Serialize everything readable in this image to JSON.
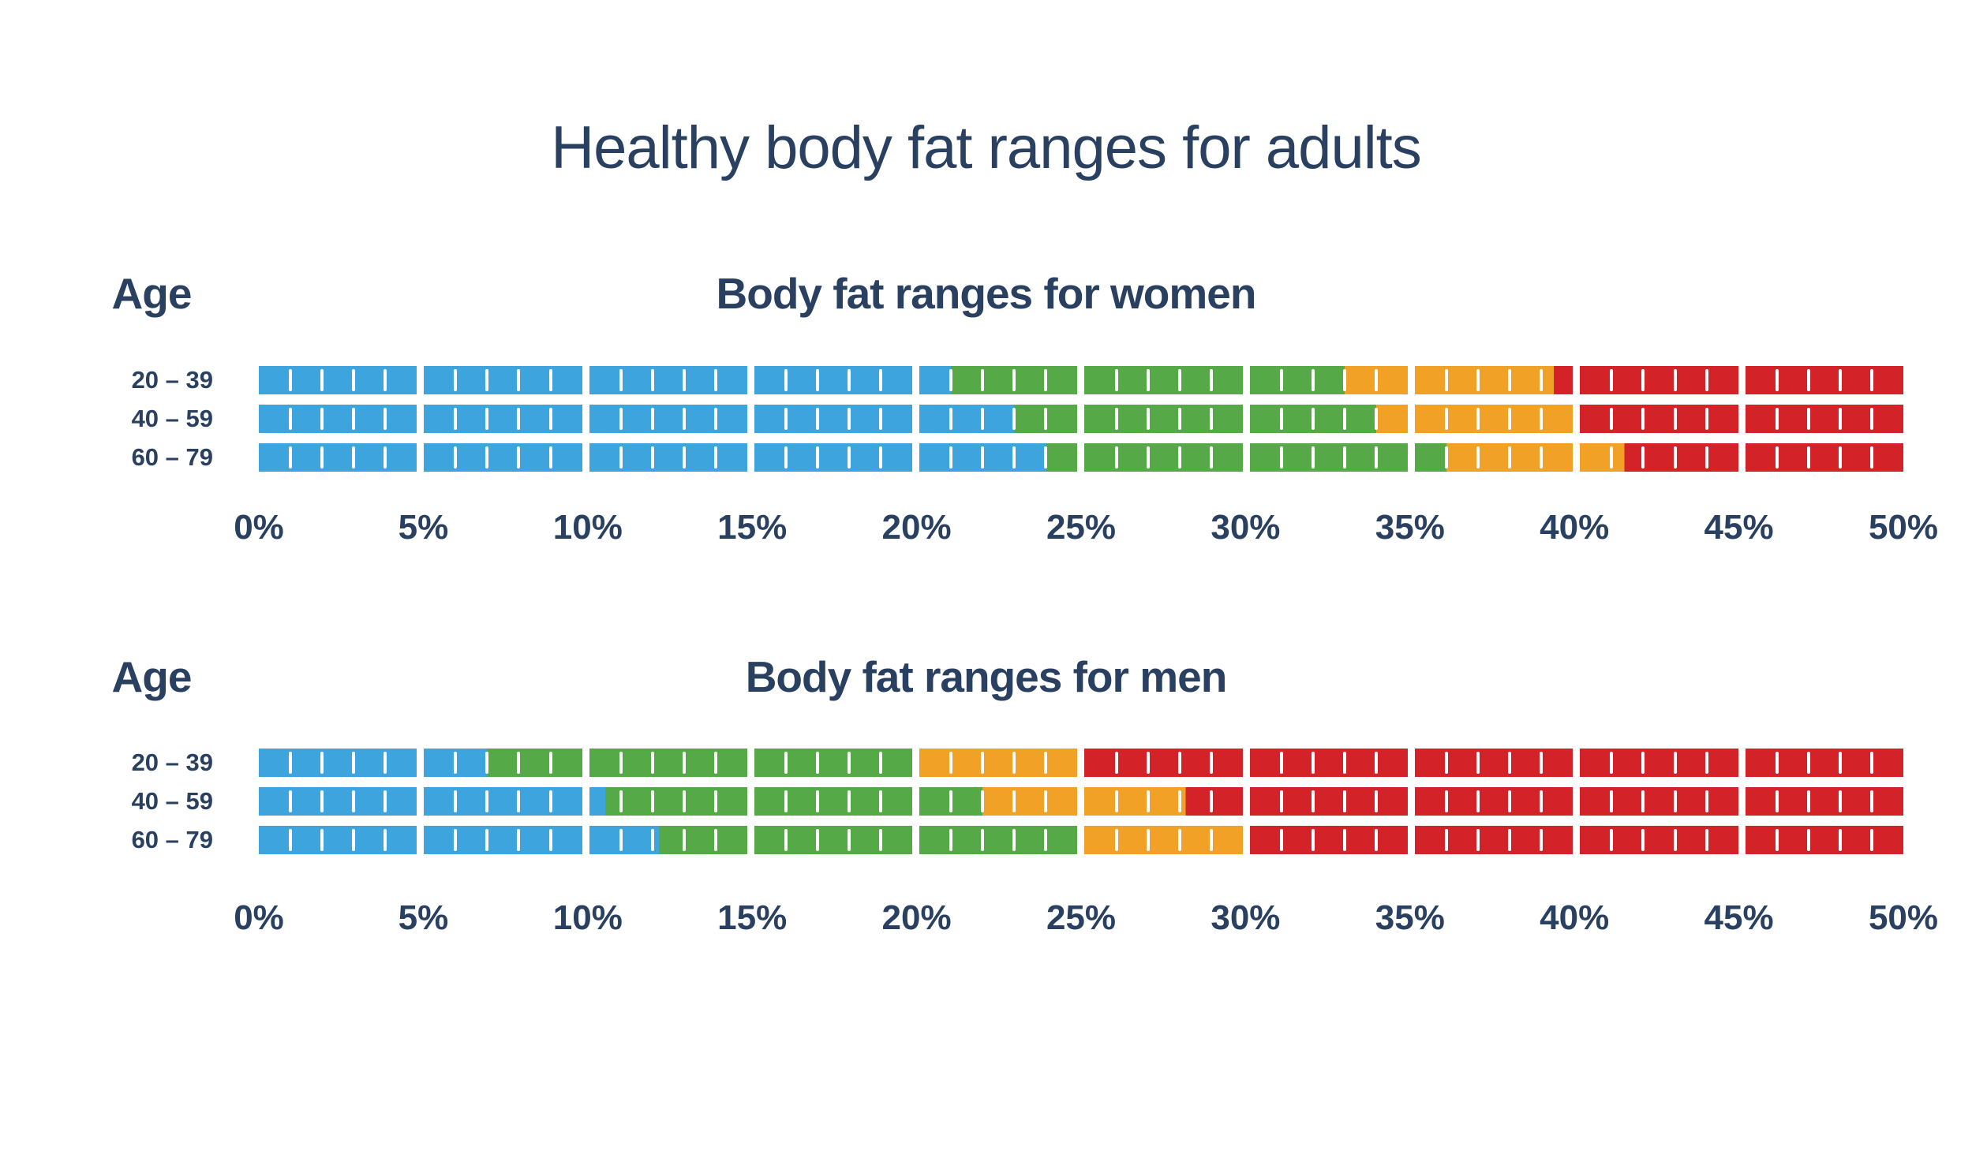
{
  "chart_data": {
    "type": "bar",
    "variant": "segmented-range-bars",
    "title": "Healthy body fat ranges for adults",
    "x_axis": {
      "min": 0,
      "max": 50,
      "step": 5,
      "unit": "%",
      "tick_labels": [
        "0%",
        "5%",
        "10%",
        "15%",
        "20%",
        "25%",
        "30%",
        "35%",
        "40%",
        "45%",
        "50%"
      ]
    },
    "block_interval_pct": 5,
    "minor_tick_interval_pct": 1,
    "palette": {
      "blue": "#3DA4DD",
      "green": "#55AA47",
      "orange": "#F1A125",
      "red": "#D42229",
      "tick": "#FFFFFF",
      "text": "#2A4060"
    },
    "groups": [
      {
        "age_column_header": "Age",
        "title": "Body fat ranges for women",
        "rows": [
          {
            "age": "20 – 39",
            "segments": [
              [
                0,
                21,
                "blue"
              ],
              [
                21,
                33,
                "green"
              ],
              [
                33,
                39.4,
                "orange"
              ],
              [
                39.4,
                50,
                "red"
              ]
            ]
          },
          {
            "age": "40 – 59",
            "segments": [
              [
                0,
                23,
                "blue"
              ],
              [
                23,
                34,
                "green"
              ],
              [
                34,
                40,
                "orange"
              ],
              [
                40,
                50,
                "red"
              ]
            ]
          },
          {
            "age": "60 – 79",
            "segments": [
              [
                0,
                24,
                "blue"
              ],
              [
                24,
                36,
                "green"
              ],
              [
                36,
                41.4,
                "orange"
              ],
              [
                41.4,
                50,
                "red"
              ]
            ]
          }
        ]
      },
      {
        "age_column_header": "Age",
        "title": "Body fat ranges for men",
        "rows": [
          {
            "age": "20 – 39",
            "segments": [
              [
                0,
                7,
                "blue"
              ],
              [
                7,
                20,
                "green"
              ],
              [
                20,
                25,
                "orange"
              ],
              [
                25,
                50,
                "red"
              ]
            ]
          },
          {
            "age": "40 – 59",
            "segments": [
              [
                0,
                10.5,
                "blue"
              ],
              [
                10.5,
                22,
                "green"
              ],
              [
                22,
                28.2,
                "orange"
              ],
              [
                28.2,
                50,
                "red"
              ]
            ]
          },
          {
            "age": "60 – 79",
            "segments": [
              [
                0,
                12.2,
                "blue"
              ],
              [
                12.2,
                25,
                "green"
              ],
              [
                25,
                30,
                "orange"
              ],
              [
                30,
                50,
                "red"
              ]
            ]
          }
        ]
      }
    ]
  }
}
